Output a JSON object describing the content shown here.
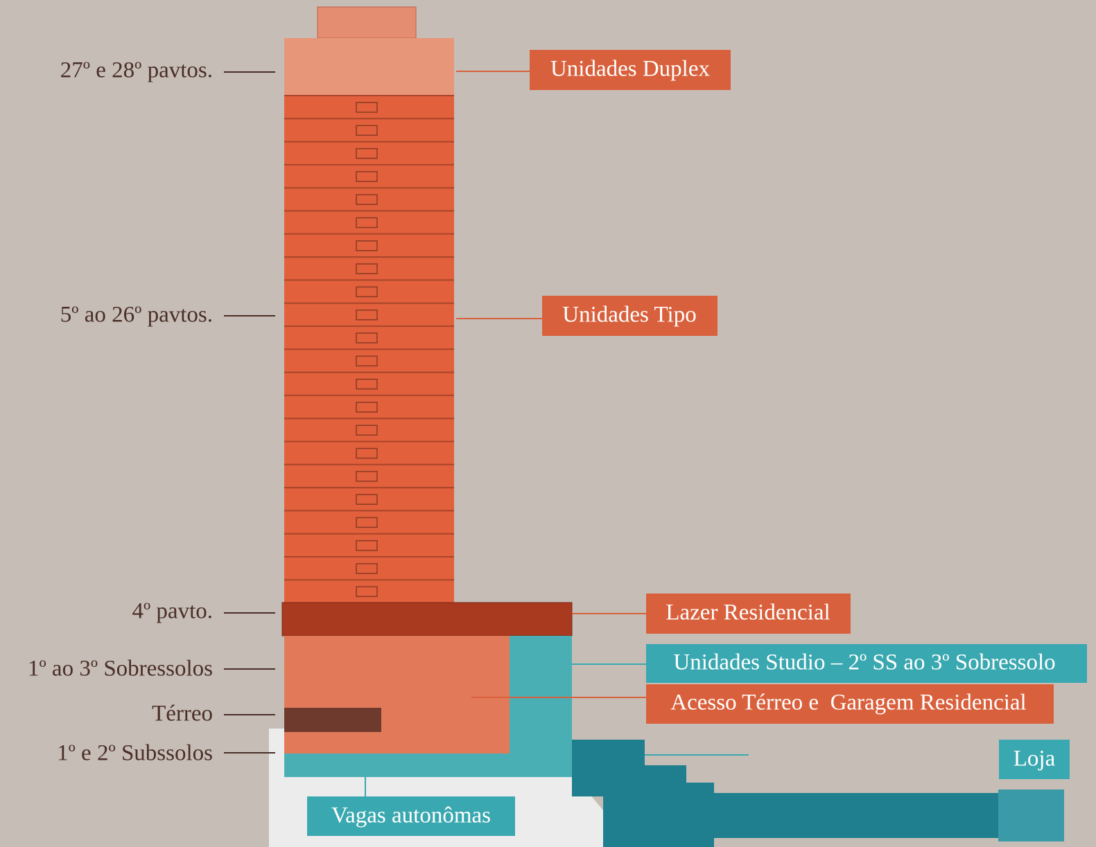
{
  "floor_labels": [
    "27º e 28º pavtos.",
    "5º ao 26º pavtos.",
    "4º pavto.",
    "1º ao 3º Sobressolos",
    "Térreo",
    "1º e 2º Subssolos"
  ],
  "zones": [
    "Unidades Duplex",
    "Unidades Tipo",
    "Lazer Residencial",
    "Unidades Studio – 2º SS ao 3º Sobressolo",
    "Acesso Térreo e  Garagem Residencial",
    "Loja",
    "Vagas autonômas"
  ]
}
